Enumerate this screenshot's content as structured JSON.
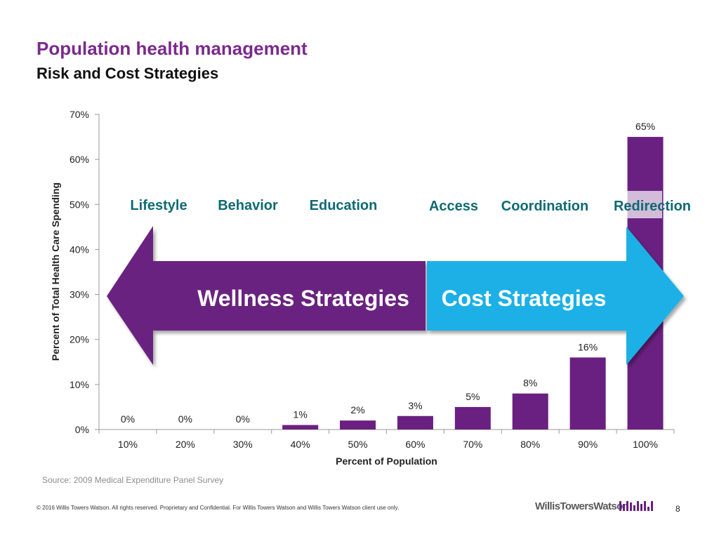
{
  "header": {
    "title": "Population health management",
    "subtitle": "Risk and Cost Strategies"
  },
  "colors": {
    "title": "#7a2a8c",
    "bar": "#6a2080",
    "wellness_arrow": "#6b2180",
    "cost_arrow": "#1ab0e6",
    "strategy_labels": "#0e6a72"
  },
  "chart_data": {
    "type": "bar",
    "categories": [
      "10%",
      "20%",
      "30%",
      "40%",
      "50%",
      "60%",
      "70%",
      "80%",
      "90%",
      "100%"
    ],
    "values": [
      0,
      0,
      0,
      1,
      2,
      3,
      5,
      8,
      16,
      65
    ],
    "data_labels": [
      "0%",
      "0%",
      "0%",
      "1%",
      "2%",
      "3%",
      "5%",
      "8%",
      "16%",
      "65%"
    ],
    "xlabel": "Percent of Population",
    "ylabel": "Percent of Total Health Care Spending",
    "ylim": [
      0,
      70
    ],
    "yticks": [
      0,
      10,
      20,
      30,
      40,
      50,
      60,
      70
    ],
    "ytick_labels": [
      "0%",
      "10%",
      "20%",
      "30%",
      "40%",
      "50%",
      "60%",
      "70%"
    ],
    "grid": false
  },
  "strategies": {
    "wellness_label": "Wellness Strategies",
    "cost_label": "Cost Strategies",
    "wellness_items": [
      "Lifestyle",
      "Behavior",
      "Education"
    ],
    "cost_items": [
      "Access",
      "Coordination",
      "Redirection"
    ]
  },
  "source": "Source: 2009 Medical Expenditure Panel Survey",
  "footer": {
    "copyright": "© 2016 Willis Towers Watson. All rights reserved. Proprietary and Confidential. For Willis Towers Watson and Willis Towers Watson client use only.",
    "brand": "WillisTowersWatson",
    "page_number": "8"
  }
}
